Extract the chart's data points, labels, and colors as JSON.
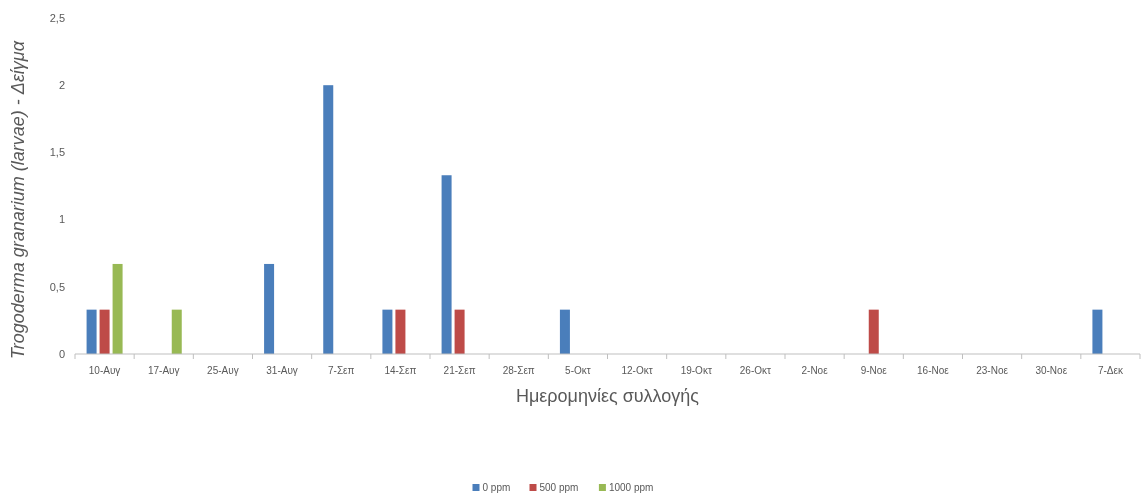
{
  "chart_data": {
    "type": "bar",
    "xlabel": "Ημερομηνίες συλλογής",
    "ylabel": "Trogoderma granarium (larvae) - Δείγμα",
    "categories": [
      "10-Αυγ",
      "17-Αυγ",
      "25-Αυγ",
      "31-Αυγ",
      "7-Σεπ",
      "14-Σεπ",
      "21-Σεπ",
      "28-Σεπ",
      "5-Οκτ",
      "12-Οκτ",
      "19-Οκτ",
      "26-Οκτ",
      "2-Νοε",
      "9-Νοε",
      "16-Νοε",
      "23-Νοε",
      "30-Νοε",
      "7-Δεκ"
    ],
    "series": [
      {
        "name": "0 ppm",
        "color": "#4a7ebb",
        "values": [
          0.33,
          0,
          0,
          0.67,
          2,
          0.33,
          1.33,
          0,
          0.33,
          0,
          0,
          0,
          0,
          0,
          0,
          0,
          0,
          0.33
        ]
      },
      {
        "name": "500 ppm",
        "color": "#be4b48",
        "values": [
          0.33,
          0,
          0,
          0,
          0,
          0.33,
          0.33,
          0,
          0,
          0,
          0,
          0,
          0,
          0.33,
          0,
          0,
          0,
          0
        ]
      },
      {
        "name": "1000 ppm",
        "color": "#98b954",
        "values": [
          0.67,
          0.33,
          0,
          0,
          0,
          0,
          0,
          0,
          0,
          0,
          0,
          0,
          0,
          0,
          0,
          0,
          0,
          0
        ]
      }
    ],
    "ylim": [
      0,
      2.5
    ],
    "yticks": [
      0,
      {
        "value": 0.5,
        "label": "0,5"
      },
      1,
      {
        "value": 1.5,
        "label": "1,5"
      },
      2,
      {
        "value": 2.5,
        "label": "2,5"
      }
    ],
    "grid": false,
    "legend": "bottom"
  }
}
